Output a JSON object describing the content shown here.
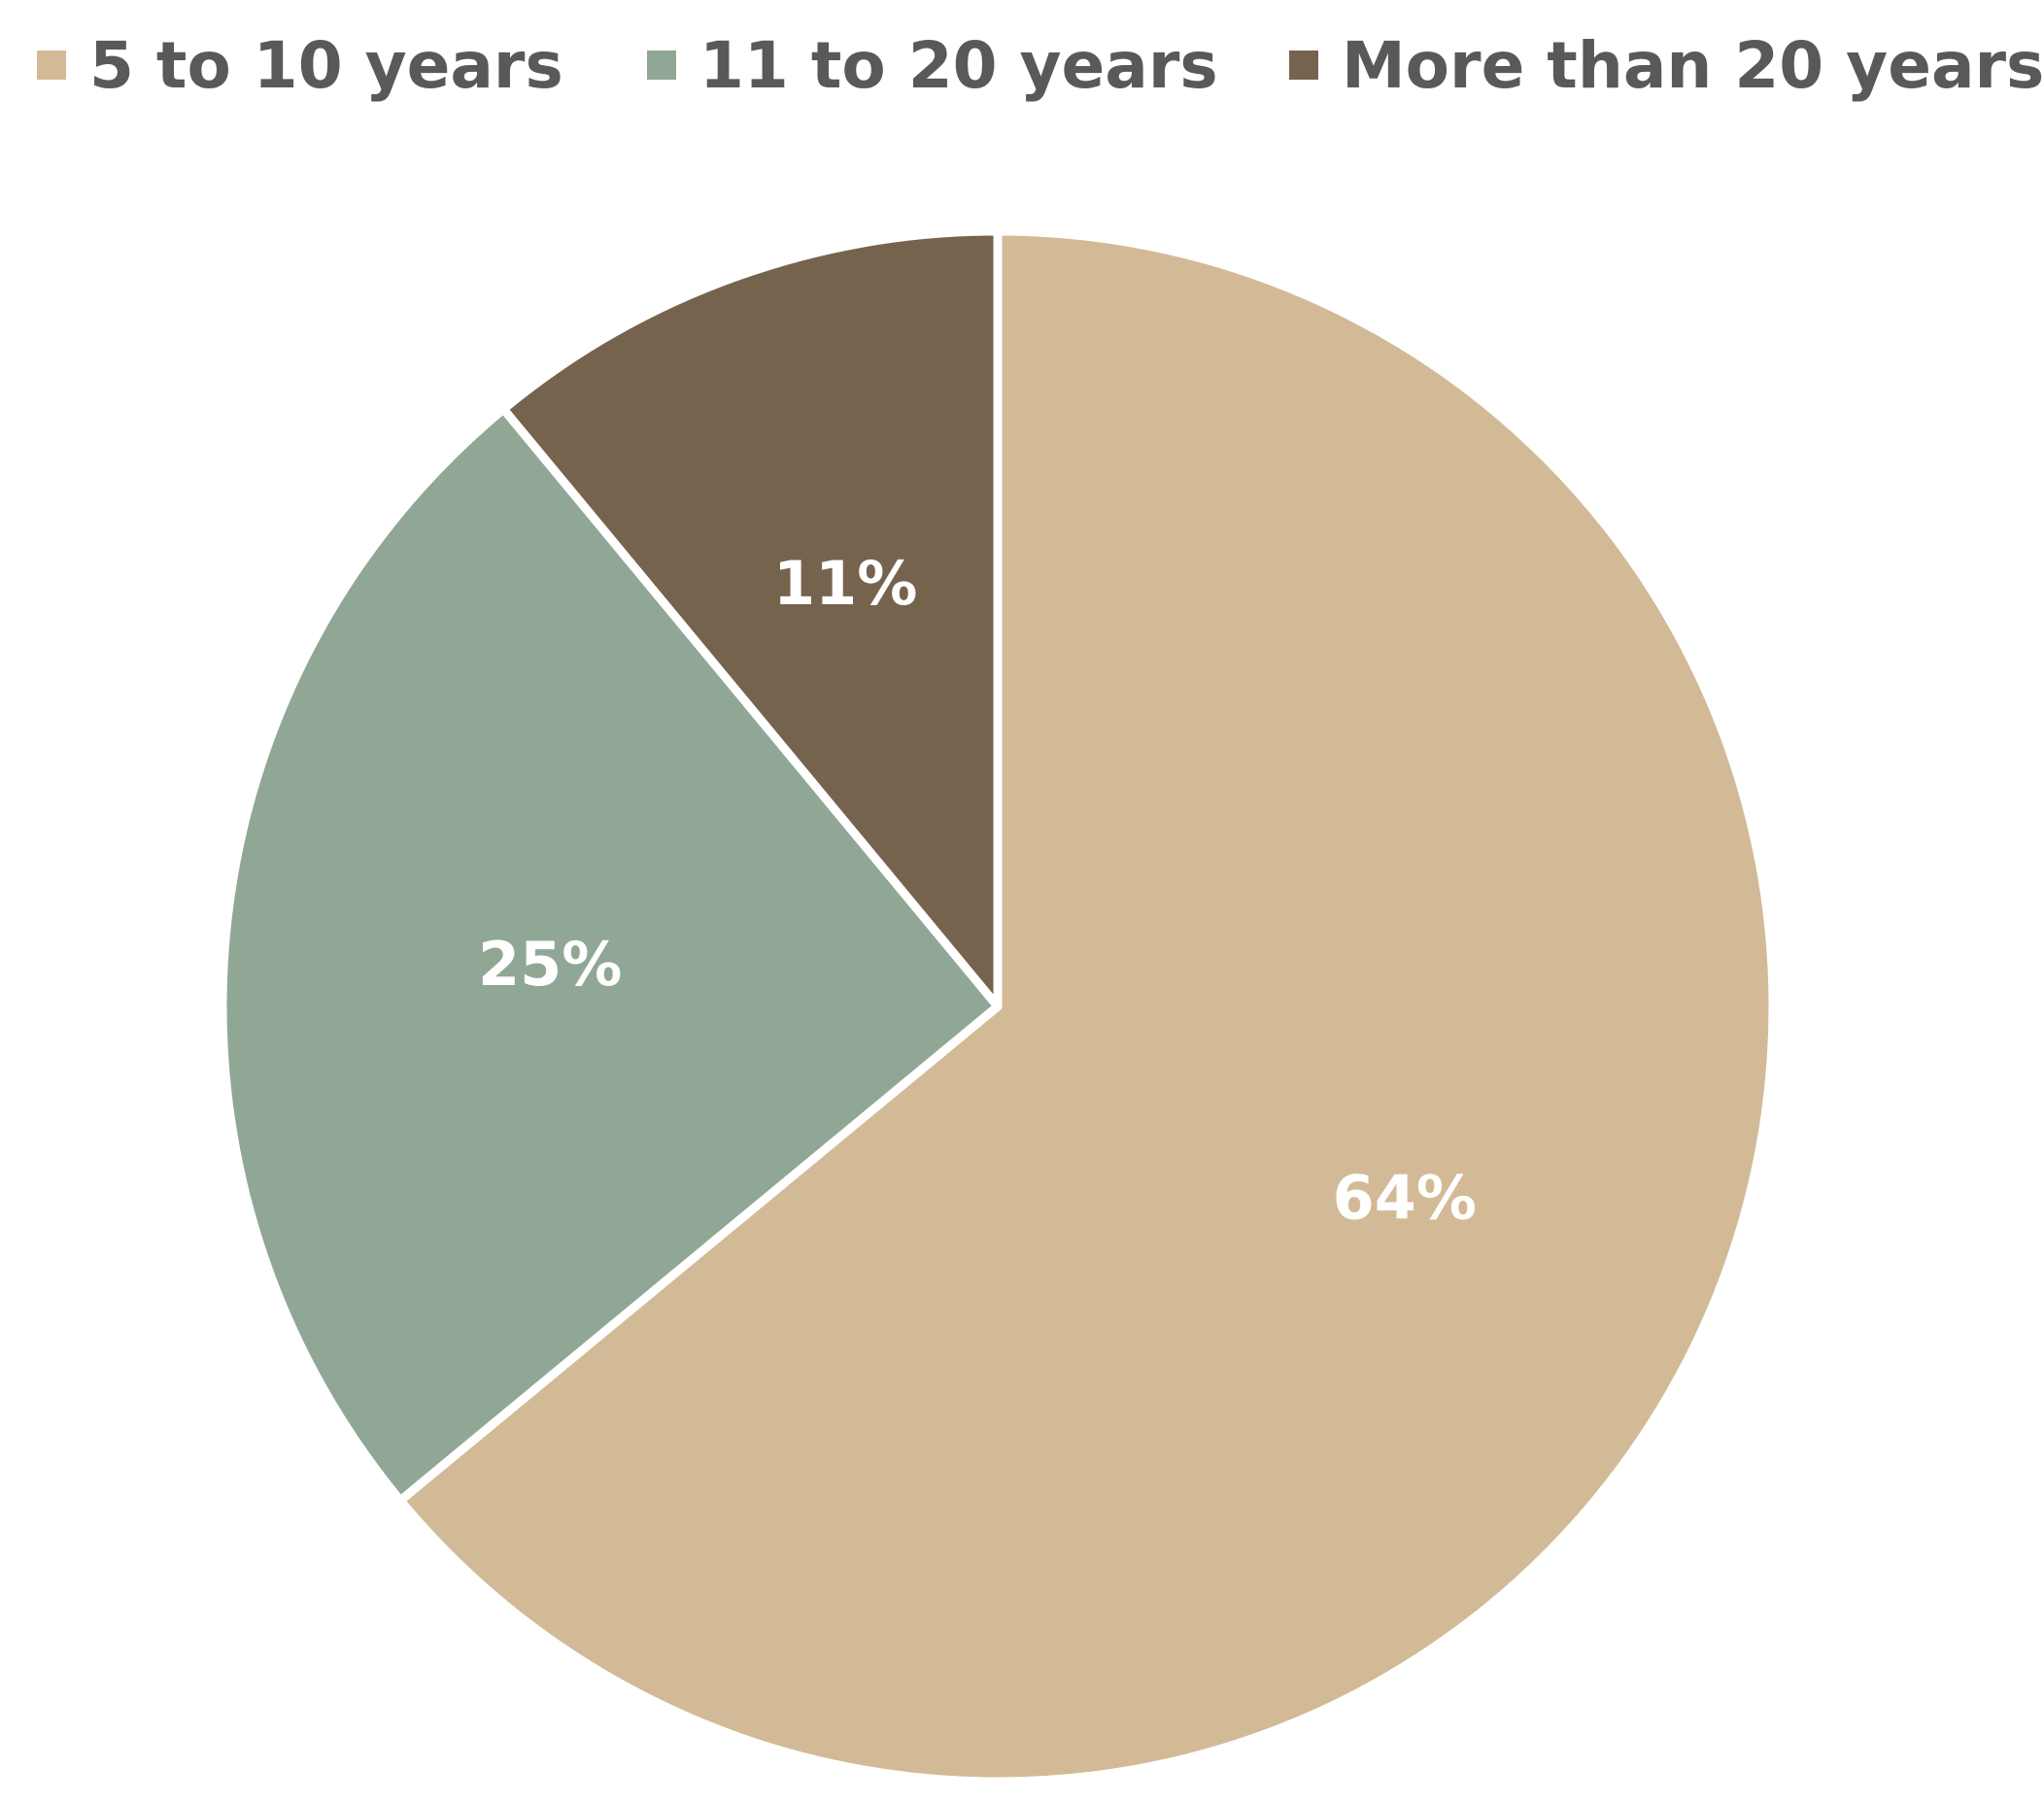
{
  "chart_data": {
    "type": "pie",
    "title": "",
    "legend_position": "top",
    "start_angle_deg": 0,
    "direction": "clockwise",
    "slices": [
      {
        "label": "5 to 10 years",
        "value": 64,
        "display": "64%",
        "color": "#D3BA97"
      },
      {
        "label": "11 to 20 years",
        "value": 25,
        "display": "25%",
        "color": "#91A796"
      },
      {
        "label": "More than 20 years",
        "value": 11,
        "display": "11%",
        "color": "#76634E"
      }
    ]
  }
}
